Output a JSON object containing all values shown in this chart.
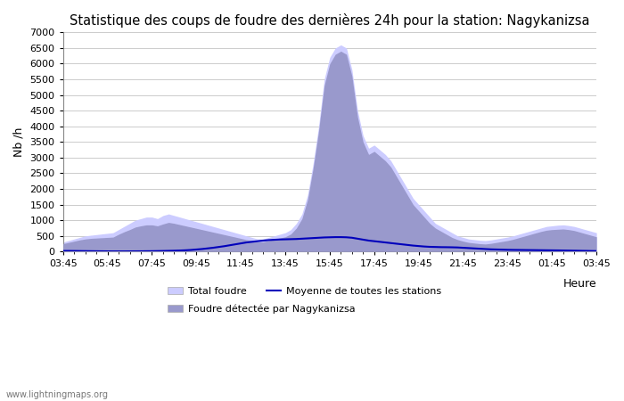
{
  "title": "Statistique des coups de foudre des dernières 24h pour la station: Nagykanizsa",
  "ylabel": "Nb /h",
  "xlabel": "Heure",
  "watermark": "www.lightningmaps.org",
  "ylim": [
    0,
    7000
  ],
  "yticks": [
    0,
    500,
    1000,
    1500,
    2000,
    2500,
    3000,
    3500,
    4000,
    4500,
    5000,
    5500,
    6000,
    6500,
    7000
  ],
  "xtick_labels": [
    "03:45",
    "05:45",
    "07:45",
    "09:45",
    "11:45",
    "13:45",
    "15:45",
    "17:45",
    "19:45",
    "21:45",
    "23:45",
    "01:45",
    "03:45"
  ],
  "color_total": "#ccccff",
  "color_detected": "#9999cc",
  "color_mean": "#0000bb",
  "bg_color": "#ffffff",
  "grid_color": "#cccccc",
  "total_foudre": [
    300,
    350,
    400,
    450,
    500,
    520,
    540,
    560,
    580,
    600,
    700,
    800,
    900,
    1000,
    1050,
    1100,
    1100,
    1050,
    1150,
    1200,
    1150,
    1100,
    1050,
    1000,
    950,
    900,
    850,
    800,
    750,
    700,
    650,
    600,
    550,
    500,
    450,
    400,
    400,
    450,
    500,
    550,
    600,
    700,
    900,
    1200,
    1800,
    2800,
    4000,
    5500,
    6200,
    6500,
    6600,
    6500,
    5800,
    4500,
    3700,
    3300,
    3400,
    3250,
    3100,
    2900,
    2600,
    2300,
    2000,
    1700,
    1500,
    1300,
    1100,
    900,
    800,
    700,
    600,
    500,
    450,
    400,
    380,
    360,
    350,
    370,
    400,
    430,
    460,
    500,
    550,
    600,
    650,
    700,
    750,
    800,
    820,
    840,
    850,
    830,
    800,
    750,
    700,
    650,
    600
  ],
  "detected": [
    250,
    290,
    330,
    370,
    400,
    420,
    430,
    440,
    450,
    460,
    550,
    630,
    700,
    780,
    820,
    850,
    850,
    820,
    880,
    930,
    900,
    860,
    820,
    780,
    740,
    700,
    660,
    620,
    580,
    540,
    500,
    460,
    420,
    380,
    350,
    310,
    310,
    350,
    390,
    430,
    470,
    560,
    750,
    1050,
    1650,
    2650,
    3850,
    5300,
    6000,
    6300,
    6400,
    6300,
    5600,
    4300,
    3500,
    3100,
    3200,
    3050,
    2900,
    2700,
    2400,
    2100,
    1800,
    1500,
    1300,
    1100,
    900,
    750,
    650,
    550,
    450,
    380,
    330,
    290,
    270,
    250,
    240,
    260,
    290,
    320,
    350,
    390,
    440,
    490,
    540,
    590,
    640,
    680,
    700,
    710,
    720,
    700,
    670,
    620,
    570,
    520,
    470
  ],
  "mean_line": [
    20,
    20,
    18,
    16,
    14,
    12,
    10,
    8,
    6,
    5,
    5,
    5,
    6,
    7,
    8,
    10,
    12,
    15,
    18,
    22,
    26,
    32,
    40,
    50,
    65,
    80,
    100,
    120,
    145,
    170,
    200,
    230,
    260,
    290,
    310,
    330,
    350,
    365,
    375,
    385,
    390,
    395,
    400,
    410,
    420,
    430,
    440,
    450,
    455,
    460,
    460,
    455,
    440,
    410,
    380,
    350,
    330,
    310,
    290,
    270,
    250,
    230,
    210,
    190,
    175,
    160,
    150,
    145,
    140,
    138,
    135,
    130,
    120,
    110,
    100,
    90,
    80,
    70,
    65,
    60,
    55,
    52,
    50,
    48,
    46,
    44,
    42,
    40,
    38,
    36,
    33,
    30,
    27,
    24,
    21,
    18,
    15
  ]
}
